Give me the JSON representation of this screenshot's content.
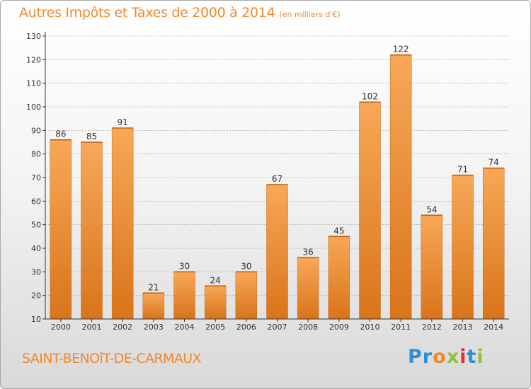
{
  "title": "Autres Impôts et Taxes de 2000 à 2014",
  "unit": "(en milliers d'€)",
  "commune": "SAINT-BENOîT-DE-CARMAUX",
  "logo": {
    "letters": [
      "P",
      "r",
      "o",
      "x",
      "i",
      "t",
      "i"
    ],
    "colors": [
      "#2f8fd6",
      "#2f8fd6",
      "#f08a24",
      "#8fc13c",
      "#e2312d",
      "#2f8fd6",
      "#8fc13c"
    ]
  },
  "colors": {
    "bar_top": "#f7a858",
    "bar_bottom": "#d9741a",
    "axis": "#333333",
    "grid": "#9a9a9a"
  },
  "chart_data": {
    "type": "bar",
    "categories": [
      "2000",
      "2001",
      "2002",
      "2003",
      "2004",
      "2005",
      "2006",
      "2007",
      "2008",
      "2009",
      "2010",
      "2011",
      "2012",
      "2013",
      "2014"
    ],
    "values": [
      86,
      85,
      91,
      21,
      30,
      24,
      30,
      67,
      36,
      45,
      102,
      122,
      54,
      71,
      74
    ],
    "ylim": [
      10,
      130
    ],
    "yticks": [
      10,
      20,
      30,
      40,
      50,
      60,
      70,
      80,
      90,
      100,
      110,
      120,
      130
    ],
    "grid": true,
    "xlabel": "",
    "ylabel": ""
  }
}
